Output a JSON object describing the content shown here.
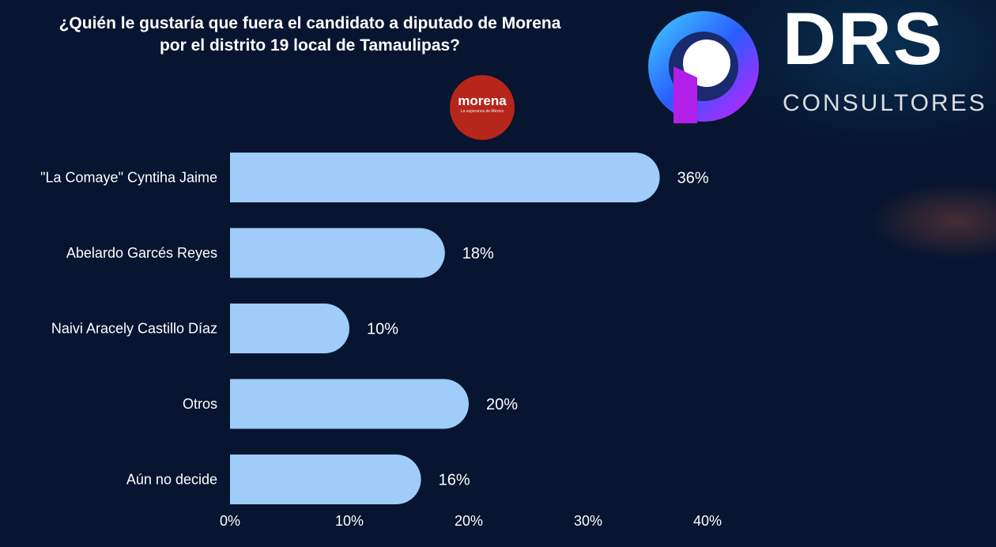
{
  "title_lines": [
    "¿Quién le gustaría que fuera el candidato a diputado de Morena",
    "por el distrito 19 local de Tamaulipas?"
  ],
  "party_logo": {
    "name": "morena",
    "tagline": "La esperanza de México",
    "color": "#b6261b"
  },
  "brand": {
    "name": "DRS",
    "subtitle": "CONSULTORES",
    "icon": "drs-swirl-logo"
  },
  "colors": {
    "background": "#071530",
    "bar": "#9fccf8",
    "text": "#ffffff"
  },
  "chart_data": {
    "type": "bar",
    "orientation": "horizontal",
    "categories": [
      "\"La Comaye\" Cyntiha Jaime",
      "Abelardo Garcés Reyes",
      "Naivi Aracely Castillo Díaz",
      "Otros",
      "Aún no decide"
    ],
    "values": [
      36,
      18,
      10,
      20,
      16
    ],
    "value_labels": [
      "36%",
      "18%",
      "10%",
      "20%",
      "16%"
    ],
    "xlim": [
      0,
      40
    ],
    "x_ticks": [
      0,
      10,
      20,
      30,
      40
    ],
    "x_tick_labels": [
      "0%",
      "10%",
      "20%",
      "30%",
      "40%"
    ],
    "grid": false,
    "legend": "none",
    "title": "¿Quién le gustaría que fuera el candidato a diputado de Morena por el distrito 19 local de Tamaulipas?"
  }
}
